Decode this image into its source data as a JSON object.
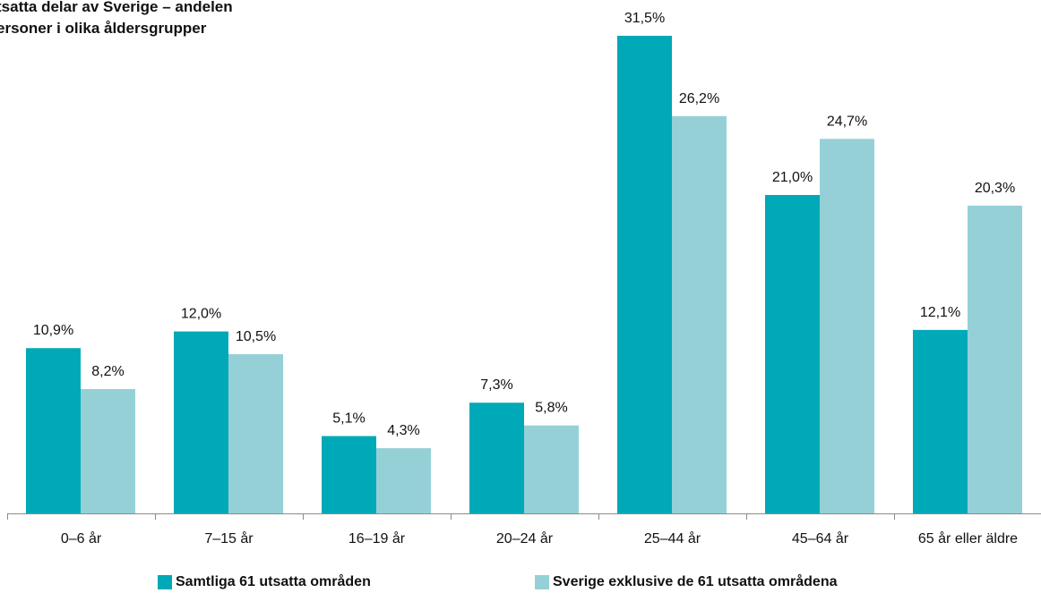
{
  "chart_data": {
    "type": "bar",
    "title_lines": [
      "tsatta delar av Sverige – andelen",
      "ersoner i olika åldersgrupper"
    ],
    "categories": [
      "0–6 år",
      "7–15 år",
      "16–19 år",
      "20–24 år",
      "25–44 år",
      "45–64 år",
      "65 år eller äldre"
    ],
    "series": [
      {
        "name": "Samtliga 61 utsatta områden",
        "color": "#00a9b7",
        "values": [
          10.9,
          12.0,
          5.1,
          7.3,
          31.5,
          21.0,
          12.1
        ],
        "labels": [
          "10,9%",
          "12,0%",
          "5,1%",
          "7,3%",
          "31,5%",
          "21,0%",
          "12,1%"
        ]
      },
      {
        "name": "Sverige exklusive de 61 utsatta områdena",
        "color": "#95d0d7",
        "values": [
          8.2,
          10.5,
          4.3,
          5.8,
          26.2,
          24.7,
          20.3
        ],
        "labels": [
          "8,2%",
          "10,5%",
          "4,3%",
          "5,8%",
          "26,2%",
          "24,7%",
          "20,3%"
        ]
      }
    ],
    "xlabel": "",
    "ylabel": "",
    "grid": false,
    "legend_position": "bottom"
  }
}
